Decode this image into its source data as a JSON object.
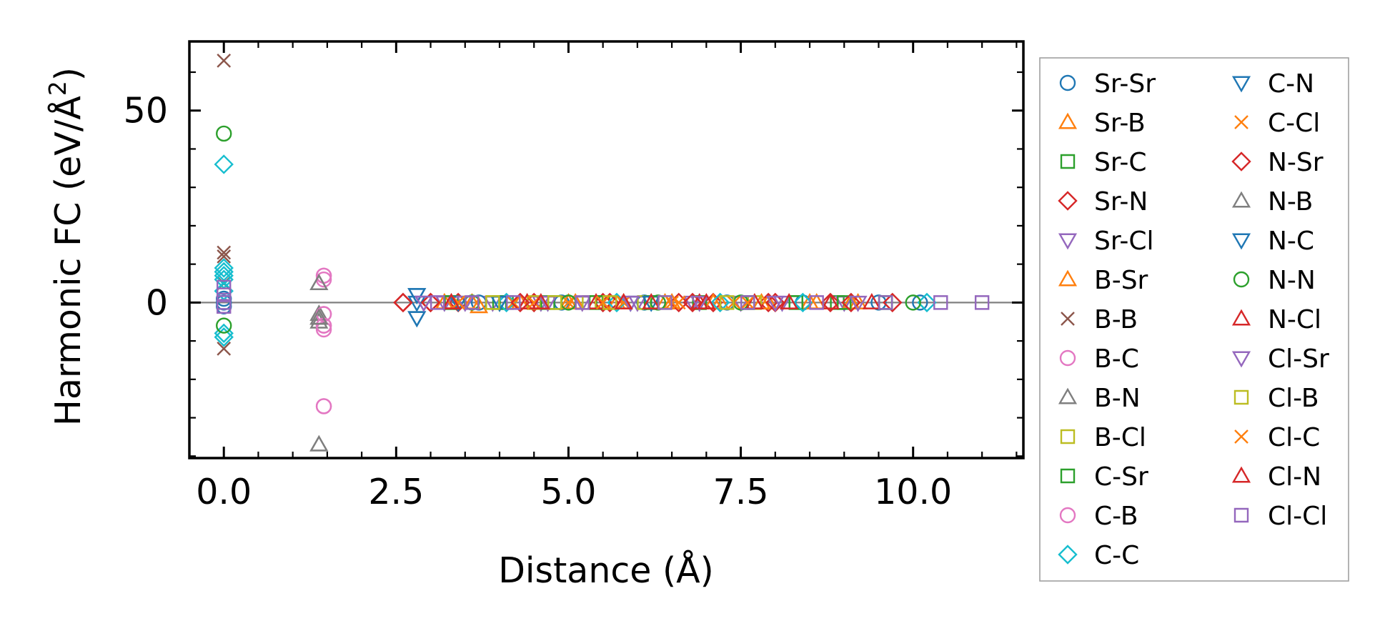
{
  "chart_data": {
    "type": "scatter",
    "xlabel": "Distance (Å)",
    "ylabel_main": "Harmonic FC (eV/Å",
    "ylabel_sup": "2",
    "ylabel_close": ")",
    "xlim": [
      -0.5,
      11.6
    ],
    "ylim": [
      -40.5,
      68
    ],
    "x_ticks": [
      0.0,
      2.5,
      5.0,
      7.5,
      10.0
    ],
    "x_tick_labels": [
      "0.0",
      "2.5",
      "5.0",
      "7.5",
      "10.0"
    ],
    "y_ticks": [
      0,
      50
    ],
    "y_tick_labels": [
      "0",
      "50"
    ],
    "zero_line": true,
    "grid": false,
    "legend_position": "right, outside",
    "series": [
      {
        "name": "Sr-Sr",
        "marker": "circle",
        "color": "#1f77b4",
        "points": [
          [
            0,
            1
          ],
          [
            0,
            -1
          ],
          [
            0,
            0
          ],
          [
            3.7,
            0
          ],
          [
            4.9,
            0
          ],
          [
            6.1,
            0
          ],
          [
            7.3,
            0
          ],
          [
            8.4,
            0
          ],
          [
            9.5,
            0
          ],
          [
            10.1,
            0
          ]
        ]
      },
      {
        "name": "Sr-B",
        "marker": "triangle-up",
        "color": "#ff7f0e",
        "points": [
          [
            3.2,
            0
          ],
          [
            3.7,
            -1
          ],
          [
            4.4,
            0
          ],
          [
            5.1,
            0
          ],
          [
            5.8,
            0
          ],
          [
            6.5,
            0
          ],
          [
            7.2,
            0
          ],
          [
            7.9,
            0
          ],
          [
            8.6,
            0
          ],
          [
            9.2,
            0
          ]
        ]
      },
      {
        "name": "Sr-C",
        "marker": "square",
        "color": "#2ca02c",
        "points": [
          [
            3.3,
            0
          ],
          [
            4.1,
            0
          ],
          [
            4.8,
            0
          ],
          [
            5.5,
            0
          ],
          [
            6.2,
            0
          ],
          [
            6.9,
            0
          ],
          [
            7.6,
            0
          ],
          [
            8.3,
            0
          ],
          [
            8.9,
            0
          ],
          [
            9.6,
            0
          ]
        ]
      },
      {
        "name": "Sr-N",
        "marker": "diamond",
        "color": "#d62728",
        "points": [
          [
            2.6,
            0
          ],
          [
            3.0,
            0
          ],
          [
            3.4,
            0
          ],
          [
            4.5,
            0
          ],
          [
            5.5,
            0
          ],
          [
            6.6,
            0
          ],
          [
            7.1,
            0
          ],
          [
            7.9,
            0
          ],
          [
            8.8,
            0
          ],
          [
            9.7,
            0
          ]
        ]
      },
      {
        "name": "Sr-Cl",
        "marker": "triangle-down",
        "color": "#9467bd",
        "points": [
          [
            2.9,
            0
          ],
          [
            3.2,
            0
          ],
          [
            3.9,
            0
          ],
          [
            4.6,
            0
          ],
          [
            5.2,
            0
          ],
          [
            6.0,
            0
          ],
          [
            6.8,
            0
          ],
          [
            7.5,
            0
          ],
          [
            8.1,
            0
          ],
          [
            9.0,
            0
          ]
        ]
      },
      {
        "name": "B-Sr",
        "marker": "triangle-up",
        "color": "#ff7f0e",
        "points": [
          [
            3.2,
            0
          ],
          [
            3.6,
            0
          ],
          [
            4.3,
            0
          ],
          [
            5.0,
            0
          ],
          [
            5.7,
            0
          ],
          [
            6.4,
            0
          ],
          [
            7.1,
            0
          ],
          [
            7.8,
            0
          ],
          [
            8.5,
            0
          ],
          [
            9.1,
            0
          ]
        ]
      },
      {
        "name": "B-B",
        "marker": "x",
        "color": "#8c564b",
        "points": [
          [
            0,
            63
          ],
          [
            0,
            13
          ],
          [
            0,
            12
          ],
          [
            0,
            -12
          ],
          [
            0,
            5
          ]
        ]
      },
      {
        "name": "B-C",
        "marker": "circle",
        "color": "#e377c2",
        "points": [
          [
            1.45,
            7
          ],
          [
            1.45,
            6
          ],
          [
            1.45,
            -3
          ],
          [
            1.45,
            -7
          ],
          [
            1.45,
            -6
          ],
          [
            1.45,
            -27
          ]
        ]
      },
      {
        "name": "B-N",
        "marker": "triangle-up",
        "color": "#7f7f7f",
        "points": [
          [
            1.38,
            5
          ],
          [
            1.38,
            -3
          ],
          [
            1.38,
            -4
          ],
          [
            1.38,
            -5
          ],
          [
            1.38,
            -37
          ]
        ]
      },
      {
        "name": "B-Cl",
        "marker": "square",
        "color": "#bcbd22",
        "points": [
          [
            3.9,
            0
          ],
          [
            4.5,
            0
          ],
          [
            5.3,
            0
          ],
          [
            6.1,
            0
          ],
          [
            6.9,
            0
          ],
          [
            7.7,
            0
          ]
        ]
      },
      {
        "name": "C-Sr",
        "marker": "square",
        "color": "#2ca02c",
        "points": [
          [
            3.3,
            0
          ],
          [
            4.0,
            0
          ],
          [
            4.7,
            0
          ],
          [
            5.4,
            0
          ],
          [
            6.2,
            0
          ],
          [
            6.9,
            0
          ],
          [
            7.6,
            0
          ],
          [
            8.3,
            0
          ],
          [
            9.0,
            0
          ],
          [
            9.6,
            0
          ]
        ]
      },
      {
        "name": "C-B",
        "marker": "circle",
        "color": "#e377c2",
        "points": [
          [
            1.45,
            7
          ],
          [
            1.45,
            -3
          ],
          [
            1.45,
            -6
          ],
          [
            1.45,
            -27
          ]
        ]
      },
      {
        "name": "C-C",
        "marker": "diamond",
        "color": "#17becf",
        "points": [
          [
            0,
            36
          ],
          [
            0,
            9
          ],
          [
            0,
            8
          ],
          [
            0,
            7
          ],
          [
            0,
            6
          ],
          [
            0,
            3
          ],
          [
            0,
            -8
          ],
          [
            0,
            -9
          ],
          [
            4.1,
            0
          ],
          [
            5.7,
            0
          ],
          [
            7.2,
            0
          ],
          [
            8.4,
            0
          ],
          [
            10.2,
            0
          ]
        ]
      },
      {
        "name": "C-N",
        "marker": "triangle-down",
        "color": "#1f77b4",
        "points": [
          [
            2.8,
            2
          ],
          [
            2.8,
            0
          ],
          [
            2.8,
            -4
          ],
          [
            3.4,
            0
          ],
          [
            4.0,
            0
          ],
          [
            5.9,
            0
          ]
        ]
      },
      {
        "name": "C-Cl",
        "marker": "x",
        "color": "#ff7f0e",
        "points": [
          [
            3.4,
            0
          ],
          [
            4.2,
            0
          ],
          [
            5.0,
            0
          ],
          [
            5.8,
            0
          ],
          [
            6.6,
            0
          ],
          [
            7.4,
            0
          ]
        ]
      },
      {
        "name": "N-Sr",
        "marker": "diamond",
        "color": "#d62728",
        "points": [
          [
            2.6,
            0
          ],
          [
            3.0,
            0
          ],
          [
            4.3,
            0
          ],
          [
            5.6,
            0
          ],
          [
            6.8,
            0
          ],
          [
            8.0,
            0
          ],
          [
            9.1,
            0
          ]
        ]
      },
      {
        "name": "N-B",
        "marker": "triangle-up",
        "color": "#7f7f7f",
        "points": [
          [
            1.38,
            5
          ],
          [
            1.38,
            -4
          ],
          [
            1.38,
            -37
          ]
        ]
      },
      {
        "name": "N-C",
        "marker": "triangle-down",
        "color": "#1f77b4",
        "points": [
          [
            2.8,
            2
          ],
          [
            2.8,
            -4
          ],
          [
            4.0,
            0
          ],
          [
            6.2,
            0
          ]
        ]
      },
      {
        "name": "N-N",
        "marker": "circle",
        "color": "#2ca02c",
        "points": [
          [
            0,
            44
          ],
          [
            0,
            -6
          ],
          [
            3.6,
            0
          ],
          [
            5.0,
            0
          ],
          [
            6.3,
            0
          ],
          [
            7.5,
            0
          ],
          [
            10.0,
            0
          ]
        ]
      },
      {
        "name": "N-Cl",
        "marker": "triangle-up",
        "color": "#d62728",
        "points": [
          [
            3.3,
            0
          ],
          [
            4.4,
            0
          ],
          [
            5.4,
            0
          ],
          [
            6.2,
            0
          ],
          [
            6.9,
            0
          ],
          [
            7.7,
            0
          ],
          [
            8.8,
            0
          ],
          [
            9.4,
            0
          ]
        ]
      },
      {
        "name": "Cl-Sr",
        "marker": "triangle-down",
        "color": "#9467bd",
        "points": [
          [
            2.9,
            0
          ],
          [
            3.5,
            0
          ],
          [
            4.7,
            0
          ],
          [
            5.9,
            0
          ],
          [
            6.9,
            0
          ],
          [
            8.0,
            0
          ],
          [
            9.2,
            0
          ]
        ]
      },
      {
        "name": "Cl-B",
        "marker": "square",
        "color": "#bcbd22",
        "points": [
          [
            3.9,
            0
          ],
          [
            4.8,
            0
          ],
          [
            5.6,
            0
          ],
          [
            6.4,
            0
          ],
          [
            7.3,
            0
          ]
        ]
      },
      {
        "name": "Cl-C",
        "marker": "x",
        "color": "#ff7f0e",
        "points": [
          [
            3.4,
            0
          ],
          [
            4.5,
            0
          ],
          [
            5.5,
            0
          ],
          [
            6.5,
            0
          ],
          [
            7.6,
            0
          ]
        ]
      },
      {
        "name": "Cl-N",
        "marker": "triangle-up",
        "color": "#d62728",
        "points": [
          [
            3.3,
            0
          ],
          [
            4.6,
            0
          ],
          [
            5.8,
            0
          ],
          [
            7.0,
            0
          ],
          [
            8.2,
            0
          ]
        ]
      },
      {
        "name": "Cl-Cl",
        "marker": "square",
        "color": "#9467bd",
        "points": [
          [
            0,
            4
          ],
          [
            0,
            2
          ],
          [
            0,
            0
          ],
          [
            0,
            -1
          ],
          [
            3.1,
            0
          ],
          [
            3.6,
            0
          ],
          [
            4.2,
            0
          ],
          [
            5.2,
            0
          ],
          [
            6.4,
            0
          ],
          [
            7.6,
            0
          ],
          [
            8.6,
            0
          ],
          [
            9.6,
            0
          ],
          [
            10.4,
            0
          ],
          [
            11.0,
            0
          ]
        ]
      }
    ]
  }
}
